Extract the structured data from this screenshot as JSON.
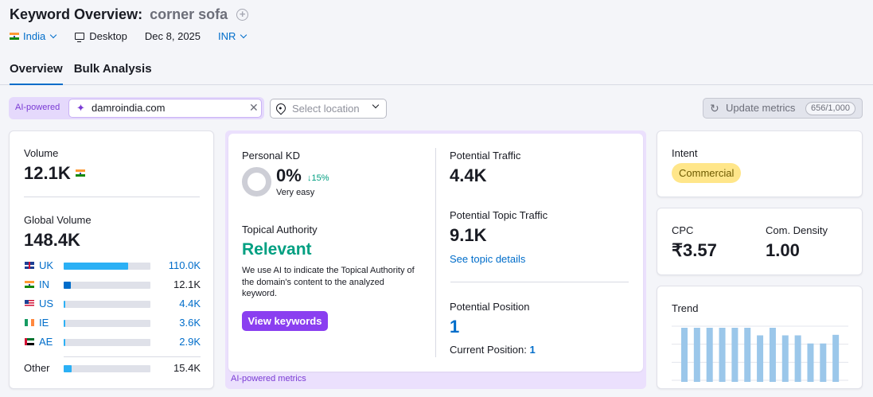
{
  "header": {
    "title_prefix": "Keyword Overview:",
    "keyword": "corner sofa",
    "add_icon": "plus-circle-icon",
    "country": "India",
    "device": "Desktop",
    "date": "Dec 8, 2025",
    "currency": "INR"
  },
  "tabs": [
    {
      "label": "Overview",
      "active": true
    },
    {
      "label": "Bulk Analysis",
      "active": false
    }
  ],
  "toolbar": {
    "ai_label": "AI-powered",
    "domain_value": "damroindia.com",
    "location_placeholder": "Select location",
    "update_label": "Update metrics",
    "update_count": "656/1,000"
  },
  "volume": {
    "label": "Volume",
    "value": "12.1K",
    "global_label": "Global Volume",
    "global_value": "148.4K",
    "countries": [
      {
        "code": "UK",
        "value": "110.0K",
        "share": 0.74,
        "link": true
      },
      {
        "code": "IN",
        "value": "12.1K",
        "share": 0.08,
        "link": false
      },
      {
        "code": "US",
        "value": "4.4K",
        "share": 0.02,
        "link": true
      },
      {
        "code": "IE",
        "value": "3.6K",
        "share": 0.015,
        "link": true
      },
      {
        "code": "AE",
        "value": "2.9K",
        "share": 0.012,
        "link": true
      }
    ],
    "other": {
      "label": "Other",
      "value": "15.4K",
      "share": 0.09
    }
  },
  "ai_metrics": {
    "personal_kd_label": "Personal KD",
    "personal_kd_value": "0%",
    "personal_kd_change": "↓15%",
    "personal_kd_sub": "Very easy",
    "topical_label": "Topical Authority",
    "topical_value": "Relevant",
    "topical_desc": "We use AI to indicate the Topical Authority of the domain's content to the analyzed keyword.",
    "view_button": "View keywords",
    "pt_label": "Potential Traffic",
    "pt_value": "4.4K",
    "ptt_label": "Potential Topic Traffic",
    "ptt_value": "9.1K",
    "ptt_link": "See topic details",
    "pp_label": "Potential Position",
    "pp_value": "1",
    "cp_label": "Current Position:",
    "cp_value": "1",
    "footer": "AI-powered metrics"
  },
  "intent": {
    "label": "Intent",
    "badge": "Commercial"
  },
  "cpc": {
    "label": "CPC",
    "value": "₹3.57",
    "density_label": "Com. Density",
    "density_value": "1.00"
  },
  "trend": {
    "label": "Trend",
    "values": [
      1.0,
      1.0,
      1.0,
      1.0,
      1.0,
      1.0,
      0.86,
      1.0,
      0.86,
      0.86,
      0.71,
      0.71,
      0.87
    ]
  },
  "colors": {
    "accent": "#006dca",
    "purple": "#8a3ff0",
    "green": "#009f81",
    "bar": "#2bb0f5",
    "trend_bar": "#9bc7ea"
  }
}
